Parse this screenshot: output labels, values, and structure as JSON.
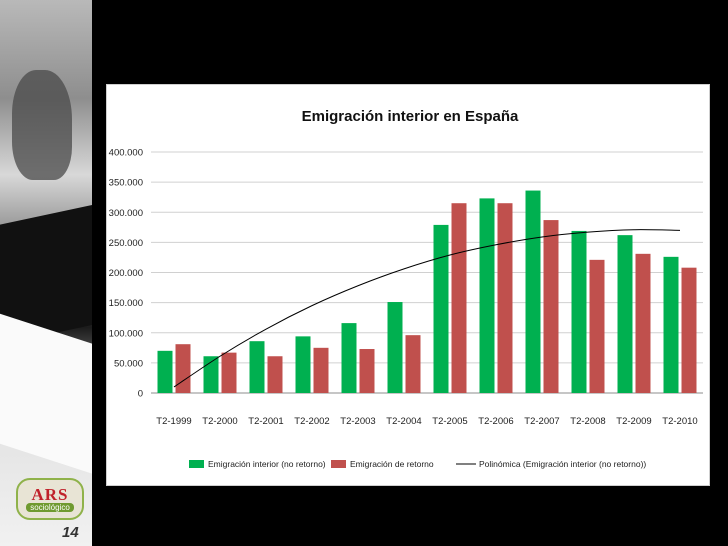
{
  "slide": {
    "number": "14"
  },
  "logo": {
    "main": "ARS",
    "sub": "sociológico"
  },
  "chart_data": {
    "type": "bar",
    "title": "Emigración interior en España",
    "xlabel": "",
    "ylabel": "",
    "ylim": [
      0,
      400000
    ],
    "y_ticks": [
      0,
      50000,
      100000,
      150000,
      200000,
      250000,
      300000,
      350000,
      400000
    ],
    "y_tick_labels": [
      "0",
      "50.000",
      "100.000",
      "150.000",
      "200.000",
      "250.000",
      "300.000",
      "350.000",
      "400.000"
    ],
    "grid": true,
    "legend_position": "bottom",
    "categories": [
      "T2-1999",
      "T2-2000",
      "T2-2001",
      "T2-2002",
      "T2-2003",
      "T2-2004",
      "T2-2005",
      "T2-2006",
      "T2-2007",
      "T2-2008",
      "T2-2009",
      "T2-2010"
    ],
    "series": [
      {
        "name": "Emigración interior (no retorno)",
        "kind": "bar",
        "color": "#00b050",
        "values": [
          70000,
          61000,
          86000,
          94000,
          116000,
          151000,
          279000,
          323000,
          336000,
          269000,
          262000,
          226000
        ]
      },
      {
        "name": "Emigración de retorno",
        "kind": "bar",
        "color": "#c0504d",
        "values": [
          81000,
          67000,
          61000,
          75000,
          73000,
          96000,
          315000,
          315000,
          287000,
          221000,
          231000,
          208000
        ]
      },
      {
        "name": "Polinómica (Emigración interior (no retorno))",
        "kind": "trendline",
        "color": "#000000",
        "values": [
          10000,
          61000,
          106000,
          145000,
          178000,
          206000,
          229000,
          246000,
          259000,
          267000,
          271000,
          270000
        ]
      }
    ]
  }
}
